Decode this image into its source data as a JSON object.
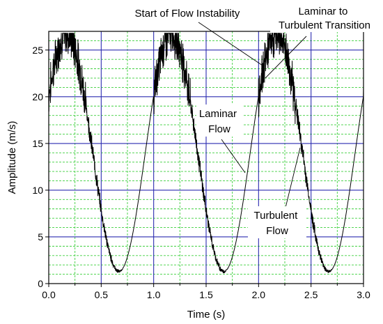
{
  "chart_data": {
    "type": "line",
    "xlabel": "Time (s)",
    "ylabel": "Amplitude (m/s)",
    "xlim": [
      0.0,
      3.0
    ],
    "ylim": [
      0,
      27
    ],
    "x_ticks": [
      0.0,
      0.5,
      1.0,
      1.5,
      2.0,
      2.5,
      3.0
    ],
    "x_tick_labels": [
      "0.0",
      "0.5",
      "1.0",
      "1.5",
      "2.0",
      "2.5",
      "3.0"
    ],
    "y_ticks": [
      0,
      5,
      10,
      15,
      20,
      25
    ],
    "y_tick_labels": [
      "0",
      "5",
      "10",
      "15",
      "20",
      "25"
    ],
    "grid": true,
    "legend": "none",
    "colors": {
      "major_grid": "#2b2bb0",
      "minor_grid": "#3bcf3b",
      "line": "#000000",
      "axis": "#000000"
    },
    "annotations": [
      {
        "text": "Start of Flow Instability"
      },
      {
        "lines": [
          "Laminar to",
          "Turbulent Transition"
        ]
      },
      {
        "lines": [
          "Laminar",
          "Flow"
        ]
      },
      {
        "lines": [
          "Turbulent",
          "Flow"
        ]
      }
    ],
    "series": [
      {
        "period": 1.0,
        "mean": 14.0,
        "amplitude": 12.7,
        "peak_x": 0.17,
        "min_x": 0.67,
        "peak_y": 26.7,
        "min_y": 1.3,
        "x": [
          0.0,
          0.05,
          0.1,
          0.15,
          0.17,
          0.25,
          0.3,
          0.35,
          0.4,
          0.45,
          0.5,
          0.55,
          0.6,
          0.67,
          0.75,
          0.8,
          0.85,
          0.9,
          0.95,
          1.0,
          1.05,
          1.1,
          1.15,
          1.17,
          1.25,
          1.3,
          1.35,
          1.4,
          1.45,
          1.5,
          1.55,
          1.6,
          1.67,
          1.75,
          1.8,
          1.85,
          1.9,
          1.95,
          2.0,
          2.05,
          2.1,
          2.15,
          2.17,
          2.25,
          2.3,
          2.35,
          2.4,
          2.45,
          2.5,
          2.55,
          2.6,
          2.67,
          2.75,
          2.8,
          2.85,
          2.9,
          2.95,
          3.0
        ],
        "y": [
          23.0,
          24.8,
          26.0,
          26.6,
          26.7,
          25.0,
          22.0,
          18.5,
          14.5,
          10.5,
          7.0,
          4.2,
          2.3,
          1.3,
          2.5,
          4.6,
          7.6,
          11.2,
          15.0,
          23.0,
          24.8,
          26.0,
          26.6,
          26.7,
          25.0,
          22.0,
          18.5,
          14.5,
          10.5,
          7.0,
          4.2,
          2.3,
          1.3,
          2.5,
          4.6,
          7.6,
          11.2,
          15.0,
          21.5,
          24.8,
          26.0,
          26.6,
          26.7,
          25.0,
          22.0,
          18.5,
          14.5,
          10.5,
          7.0,
          4.2,
          2.3,
          1.3,
          2.5,
          4.6,
          7.6,
          11.2,
          16.0,
          23.4
        ]
      }
    ]
  }
}
